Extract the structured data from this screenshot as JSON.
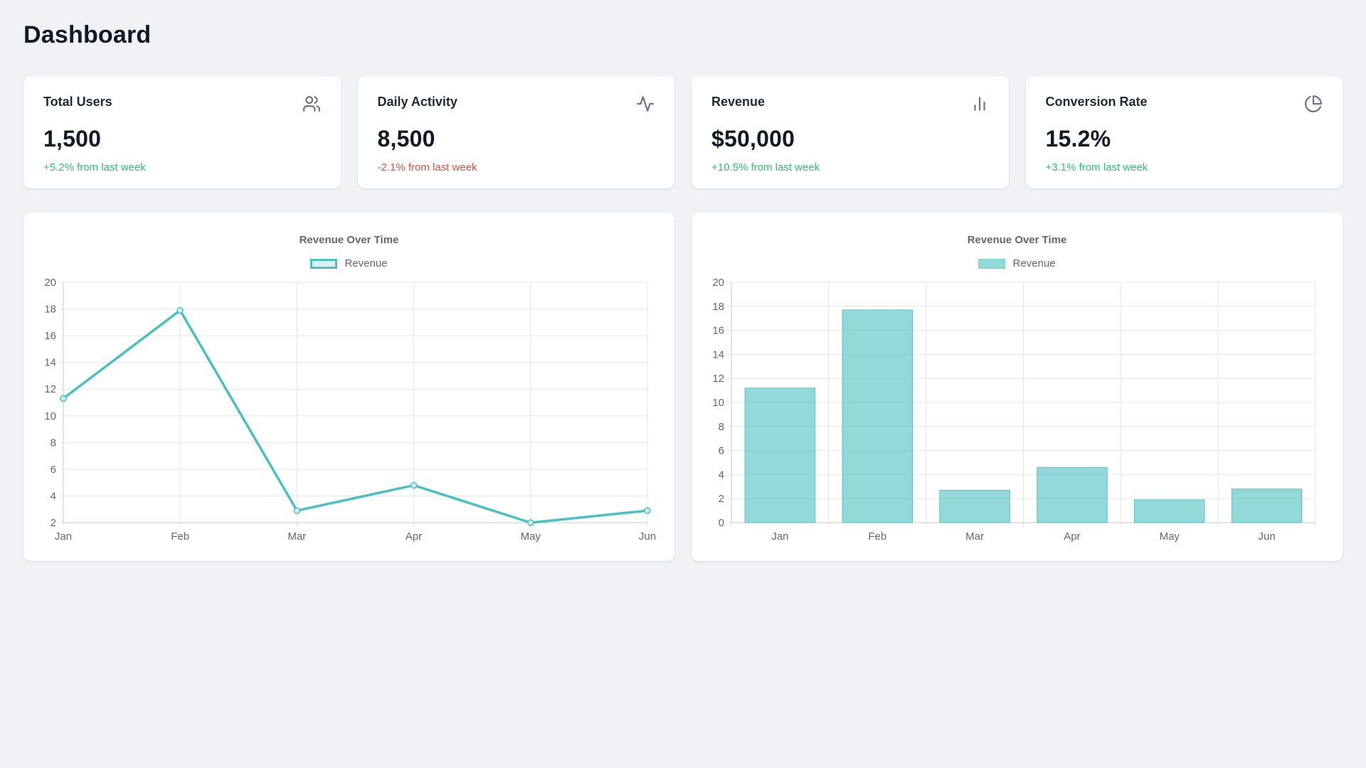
{
  "page": {
    "title": "Dashboard"
  },
  "colors": {
    "accent_teal": "#4bc0c0",
    "teal_fill_light": "rgba(75,192,192,0.2)",
    "teal_fill_bar": "rgba(75,192,192,0.6)",
    "teal_border_soft": "rgba(75,192,192,0.35)",
    "bar_border": "rgba(75,192,192,0.9)",
    "point_fill": "#cdeeee",
    "positive_green": "#2dc26e",
    "negative_red": "#e74c3c",
    "grid": "#e6e6e6",
    "axis": "#c9c9c9",
    "tick_text": "#666666"
  },
  "stats": [
    {
      "label": "Total Users",
      "value": "1,500",
      "change": "+5.2% from last week",
      "trend": "up",
      "icon": "users-icon"
    },
    {
      "label": "Daily Activity",
      "value": "8,500",
      "change": "-2.1% from last week",
      "trend": "down",
      "icon": "activity-icon"
    },
    {
      "label": "Revenue",
      "value": "$50,000",
      "change": "+10.5% from last week",
      "trend": "up",
      "icon": "bar-chart-icon"
    },
    {
      "label": "Conversion Rate",
      "value": "15.2%",
      "change": "+3.1% from last week",
      "trend": "up",
      "icon": "pie-chart-icon"
    }
  ],
  "chart_data": [
    {
      "type": "line",
      "title": "Revenue Over Time",
      "legend_position": "top",
      "grid": true,
      "categories": [
        "Jan",
        "Feb",
        "Mar",
        "Apr",
        "May",
        "Jun"
      ],
      "series": [
        {
          "name": "Revenue",
          "values": [
            11.3,
            17.9,
            2.9,
            4.8,
            2.0,
            2.9
          ]
        }
      ],
      "xlabel": "",
      "ylabel": "",
      "ylim": [
        2,
        20
      ],
      "ytick_step": 2
    },
    {
      "type": "bar",
      "title": "Revenue Over Time",
      "legend_position": "top",
      "grid": true,
      "categories": [
        "Jan",
        "Feb",
        "Mar",
        "Apr",
        "May",
        "Jun"
      ],
      "series": [
        {
          "name": "Revenue",
          "values": [
            11.2,
            17.7,
            2.7,
            4.6,
            1.9,
            2.8
          ]
        }
      ],
      "xlabel": "",
      "ylabel": "",
      "ylim": [
        0,
        20
      ],
      "ytick_step": 2
    }
  ]
}
